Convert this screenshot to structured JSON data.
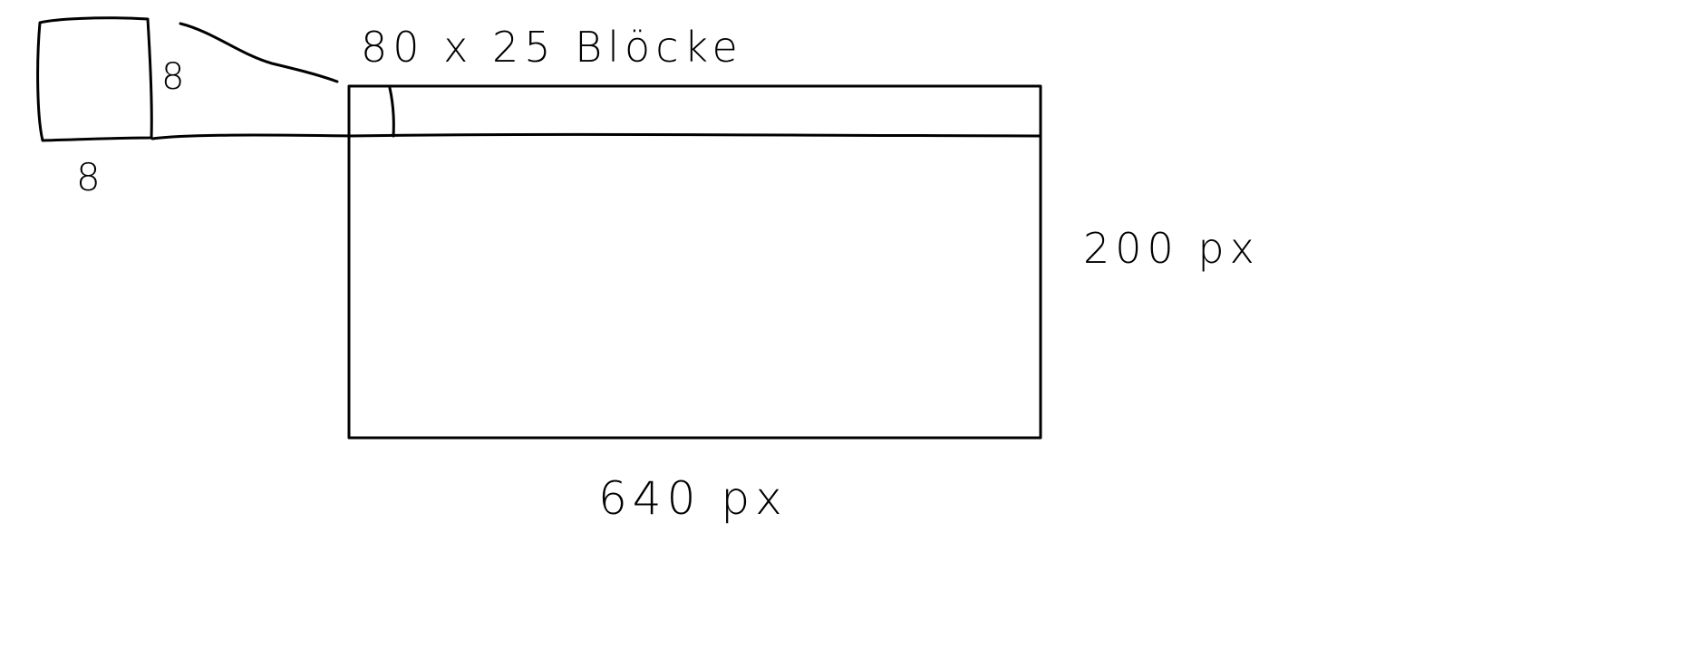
{
  "labels": {
    "block_grid": "80 x 25 Blöcke",
    "block_height": "8",
    "block_width": "8",
    "screen_height": "200 px",
    "screen_width": "640 px"
  }
}
